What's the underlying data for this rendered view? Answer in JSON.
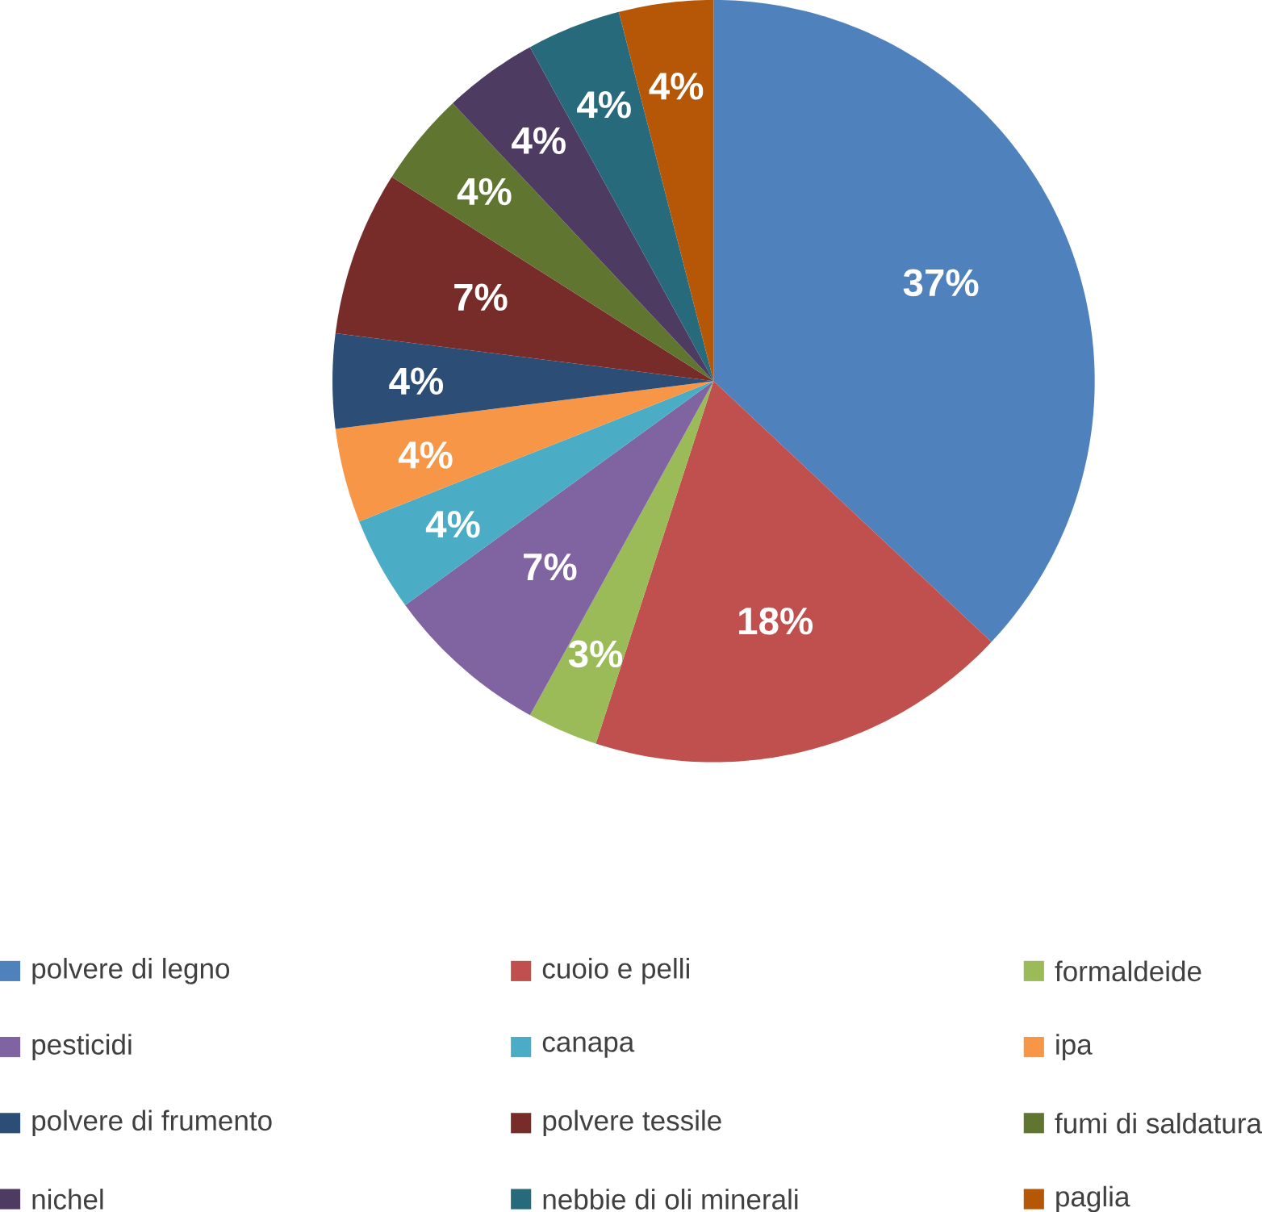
{
  "chart_data": {
    "type": "pie",
    "categories": [
      "polvere di legno",
      "cuoio e pelli",
      "formaldeide",
      "pesticidi",
      "canapa",
      "ipa",
      "polvere di frumento",
      "polvere tessile",
      "fumi di saldatura",
      "nichel",
      "nebbie di oli minerali",
      "paglia"
    ],
    "values": [
      37,
      18,
      3,
      7,
      4,
      4,
      4,
      7,
      4,
      4,
      4,
      4
    ],
    "value_labels": [
      "37%",
      "18%",
      "3%",
      "7%",
      "4%",
      "4%",
      "4%",
      "7%",
      "4%",
      "4%",
      "4%",
      "4%"
    ],
    "colors": [
      "#4f81bd",
      "#c0504d",
      "#9bbb59",
      "#8064a2",
      "#4bacc6",
      "#f79646",
      "#2c4d75",
      "#772c2a",
      "#5f7530",
      "#4d3b62",
      "#276a7c",
      "#b65708"
    ],
    "legend": "bottom"
  }
}
